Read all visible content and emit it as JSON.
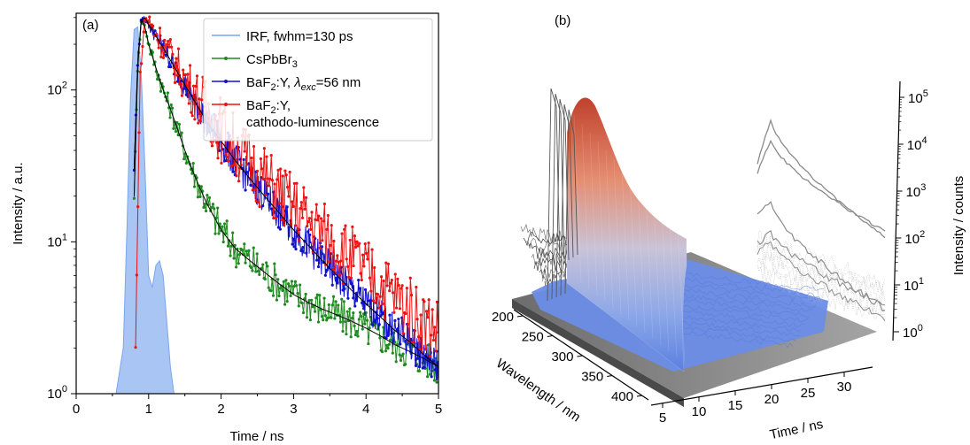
{
  "panel_a": {
    "label": "(a)",
    "legend": [
      {
        "label": "IRF, fwhm=130 ps",
        "color": "#7aa6ee"
      },
      {
        "label_parts": [
          "CsPbBr",
          "3"
        ],
        "color": "#1f8a1f"
      },
      {
        "label_parts": [
          "BaF",
          "2",
          ":Y, ",
          "λ",
          "exc",
          "=56 nm"
        ],
        "color": "#1010d0"
      },
      {
        "label_parts": [
          "BaF",
          "2",
          ":Y,"
        ],
        "label_line2": "cathodo-luminescence",
        "color": "#ee1111"
      }
    ]
  },
  "panel_b": {
    "label": "(b)",
    "wavelength_label": "Wavelength / nm",
    "time_label": "Time / ns",
    "counts_label": "Intensity / counts",
    "wavelength_ticks": [
      "200",
      "250",
      "300",
      "350",
      "400"
    ],
    "time_ticks": [
      "5",
      "10",
      "15",
      "20",
      "25",
      "30"
    ],
    "counts_ticks": [
      {
        "base": "10",
        "exp": "0"
      },
      {
        "base": "10",
        "exp": "1"
      },
      {
        "base": "10",
        "exp": "2"
      },
      {
        "base": "10",
        "exp": "3"
      },
      {
        "base": "10",
        "exp": "4"
      },
      {
        "base": "10",
        "exp": "5"
      }
    ]
  },
  "chart_data": [
    {
      "type": "line",
      "yscale": "log",
      "xlabel": "Time / ns",
      "ylabel": "Intensity / a.u.",
      "xlim": [
        0,
        5
      ],
      "ylim": [
        1,
        320
      ],
      "x_ticks": [
        "0",
        "1",
        "2",
        "3",
        "4",
        "5"
      ],
      "y_ticks": [
        {
          "base": "10",
          "exp": "0",
          "value": 1
        },
        {
          "base": "10",
          "exp": "1",
          "value": 10
        },
        {
          "base": "10",
          "exp": "2",
          "value": 100
        }
      ],
      "legend_position": "top-right",
      "series": [
        {
          "name": "IRF, fwhm=130 ps",
          "style": "filled",
          "color": "#7aa6ee",
          "x": [
            0.55,
            0.65,
            0.7,
            0.75,
            0.8,
            0.85,
            0.9,
            0.95,
            1.0,
            1.05,
            1.1,
            1.15,
            1.2,
            1.25,
            1.3,
            1.35
          ],
          "y": [
            1,
            2,
            12,
            90,
            250,
            260,
            120,
            30,
            6,
            5,
            7,
            7.5,
            6,
            3,
            1.5,
            1
          ]
        },
        {
          "name": "CsPbBr3",
          "style": "markers-line",
          "color": "#1f8a1f",
          "x": [
            0.8,
            0.85,
            0.9,
            0.95,
            1.0,
            1.1,
            1.2,
            1.3,
            1.4,
            1.5,
            1.6,
            1.7,
            1.8,
            2.0,
            2.2,
            2.4,
            2.6,
            2.8,
            3.0,
            3.2,
            3.4,
            3.6,
            3.8,
            4.0,
            4.2,
            4.4,
            4.6,
            4.8,
            5.0
          ],
          "y": [
            20,
            150,
            290,
            260,
            200,
            140,
            100,
            75,
            55,
            40,
            30,
            23,
            18,
            12,
            9,
            7.5,
            6.3,
            5.3,
            4.5,
            4.0,
            3.6,
            3.3,
            3.0,
            2.7,
            2.4,
            2.1,
            1.9,
            1.7,
            1.5
          ]
        },
        {
          "name": "BaF2:Y, λexc=56 nm",
          "style": "markers-line",
          "color": "#1010d0",
          "x": [
            0.8,
            0.85,
            0.9,
            0.95,
            1.0,
            1.2,
            1.4,
            1.6,
            1.8,
            2.0,
            2.2,
            2.4,
            2.6,
            2.8,
            3.0,
            3.2,
            3.4,
            3.6,
            3.8,
            4.0,
            4.2,
            4.4,
            4.6,
            4.8,
            5.0
          ],
          "y": [
            30,
            160,
            290,
            300,
            270,
            190,
            130,
            90,
            62,
            46,
            34,
            26,
            20,
            15.5,
            12,
            9.5,
            7.5,
            6.0,
            4.8,
            3.9,
            3.2,
            2.6,
            2.2,
            1.8,
            1.5
          ]
        },
        {
          "name": "BaF2:Y, cathodo-luminescence",
          "style": "markers-line",
          "color": "#ee1111",
          "x": [
            0.82,
            0.88,
            0.95,
            1.0,
            1.2,
            1.4,
            1.6,
            1.8,
            2.0,
            2.2,
            2.4,
            2.6,
            2.8,
            3.0,
            3.2,
            3.4,
            3.6,
            3.8,
            4.0,
            4.2,
            4.4,
            4.6,
            4.8,
            5.0
          ],
          "y": [
            2,
            120,
            300,
            280,
            200,
            140,
            100,
            75,
            55,
            42,
            33,
            26,
            21,
            17,
            14,
            11.5,
            9.5,
            7.8,
            6.4,
            5.3,
            4.4,
            3.6,
            3.0,
            2.6
          ]
        }
      ]
    },
    {
      "type": "area",
      "projection": "3d-waterfall",
      "xlabel": "Wavelength / nm",
      "ylabel": "Time / ns",
      "zlabel": "Intensity / counts",
      "x_ticks": [
        "200",
        "250",
        "300",
        "350",
        "400"
      ],
      "y_ticks": [
        "5",
        "10",
        "15",
        "20",
        "25",
        "30"
      ],
      "z_scale": "log",
      "colormap": "coolwarm"
    }
  ]
}
